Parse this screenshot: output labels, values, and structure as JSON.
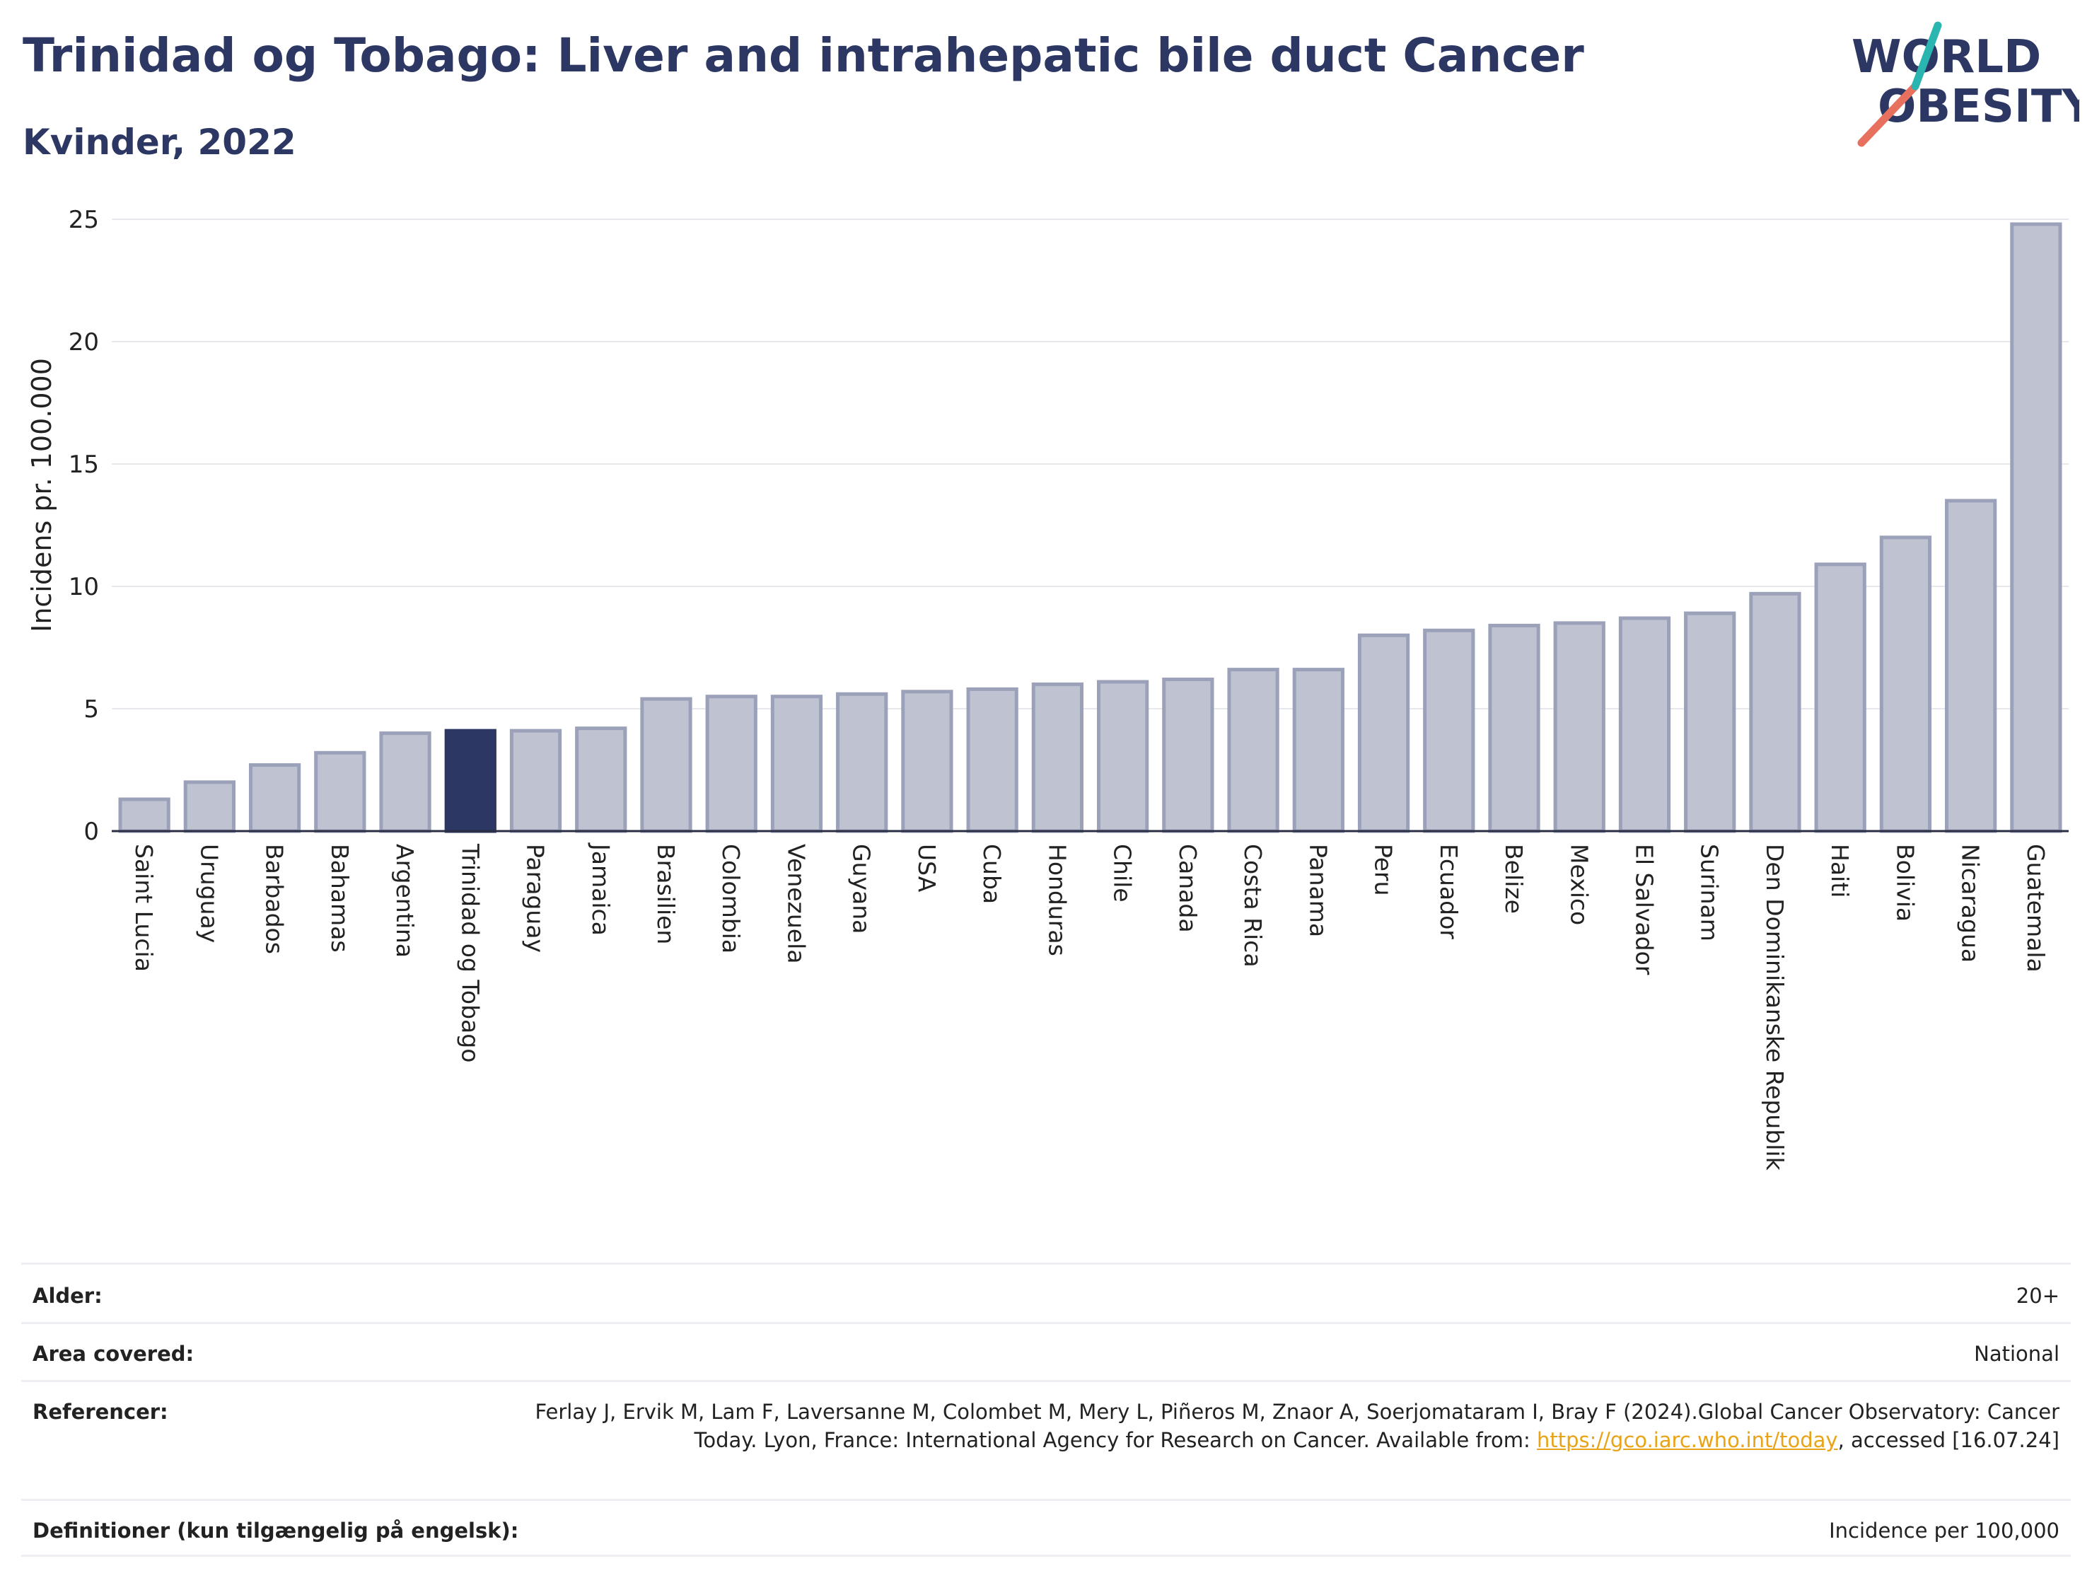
{
  "header": {
    "title": "Trinidad og Tobago: Liver and intrahepatic bile duct Cancer",
    "subtitle": "Kvinder, 2022"
  },
  "logo": {
    "line1": "WORLD",
    "line2": "OBESITY",
    "colors": {
      "text": "#2c3763",
      "slash_red": "#e8705f",
      "slash_teal": "#2bb5b0"
    }
  },
  "chart_data": {
    "type": "bar",
    "ylabel": "Incidens pr. 100.000",
    "xlabel": "",
    "ylim": [
      0,
      25
    ],
    "yticks": [
      0,
      5,
      10,
      15,
      20,
      25
    ],
    "grid": true,
    "highlight": "Trinidad og Tobago",
    "colors": {
      "bar": "#bfc3d1",
      "bar_edge": "#9ba1b9",
      "highlight": "#2c3763"
    },
    "categories": [
      "Saint Lucia",
      "Uruguay",
      "Barbados",
      "Bahamas",
      "Argentina",
      "Trinidad og Tobago",
      "Paraguay",
      "Jamaica",
      "Brasilien",
      "Colombia",
      "Venezuela",
      "Guyana",
      "USA",
      "Cuba",
      "Honduras",
      "Chile",
      "Canada",
      "Costa Rica",
      "Panama",
      "Peru",
      "Ecuador",
      "Belize",
      "Mexico",
      "El Salvador",
      "Surinam",
      "Den Dominikanske Republik",
      "Haiti",
      "Bolivia",
      "Nicaragua",
      "Guatemala"
    ],
    "values": [
      1.3,
      2.0,
      2.7,
      3.2,
      4.0,
      4.1,
      4.1,
      4.2,
      5.4,
      5.5,
      5.5,
      5.6,
      5.7,
      5.8,
      6.0,
      6.1,
      6.2,
      6.6,
      6.6,
      8.0,
      8.2,
      8.4,
      8.5,
      8.7,
      8.9,
      9.7,
      10.9,
      12.0,
      13.5,
      24.8
    ]
  },
  "info": {
    "rows": [
      {
        "label": "Alder:",
        "value": "20+"
      },
      {
        "label": "Area covered:",
        "value": "National"
      },
      {
        "label": "Referencer:",
        "value_pre": "Ferlay J, Ervik M, Lam F, Laversanne M, Colombet M, Mery L, Piñeros M, Znaor A, Soerjomataram I, Bray F (2024).Global Cancer Observatory: Cancer Today. Lyon, France: International Agency for Research on Cancer. Available from: ",
        "link": "https://gco.iarc.who.int/today",
        "value_post": ", accessed [16.07.24]"
      },
      {
        "label": "Definitioner (kun tilgængelig på engelsk):",
        "value": "Incidence per 100,000"
      }
    ]
  }
}
